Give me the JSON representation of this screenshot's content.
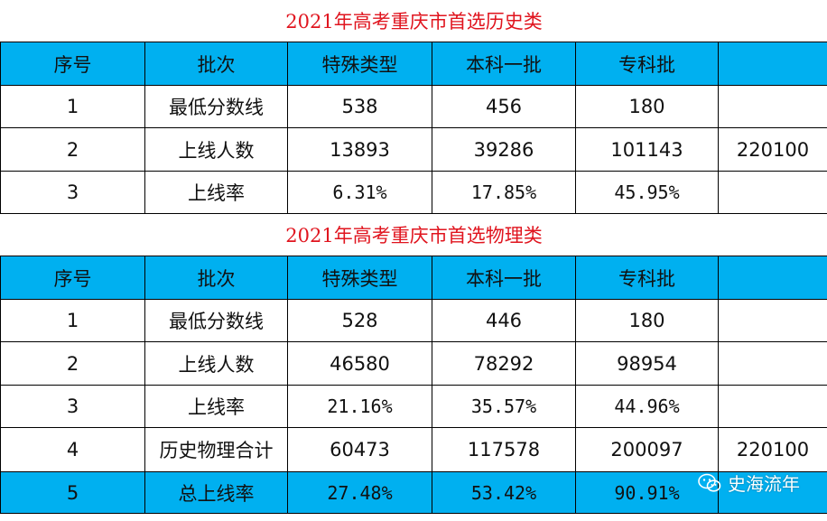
{
  "history": {
    "title": "2021年高考重庆市首选历史类",
    "header": [
      "序号",
      "批次",
      "特殊类型",
      "本科一批",
      "专科批",
      ""
    ],
    "rows": [
      [
        "1",
        "最低分数线",
        "538",
        "456",
        "180",
        ""
      ],
      [
        "2",
        "上线人数",
        "13893",
        "39286",
        "101143",
        "220100"
      ],
      [
        "3",
        "上线率",
        "6.31%",
        "17.85%",
        "45.95%",
        ""
      ]
    ]
  },
  "physics": {
    "title": "2021年高考重庆市首选物理类",
    "header": [
      "序号",
      "批次",
      "特殊类型",
      "本科一批",
      "专科批",
      ""
    ],
    "rows": [
      [
        "1",
        "最低分数线",
        "528",
        "446",
        "180",
        ""
      ],
      [
        "2",
        "上线人数",
        "46580",
        "78292",
        "98954",
        ""
      ],
      [
        "3",
        "上线率",
        "21.16%",
        "35.57%",
        "44.96%",
        ""
      ],
      [
        "4",
        "历史物理合计",
        "60473",
        "117578",
        "200097",
        "220100"
      ],
      [
        "5",
        "总上线率",
        "27.48%",
        "53.42%",
        "90.91%",
        ""
      ]
    ]
  },
  "watermark": {
    "text": "史海流年",
    "icon": "wechat-icon"
  },
  "colors": {
    "header_bg": "#00b0f0",
    "title_color": "#e0141e"
  }
}
